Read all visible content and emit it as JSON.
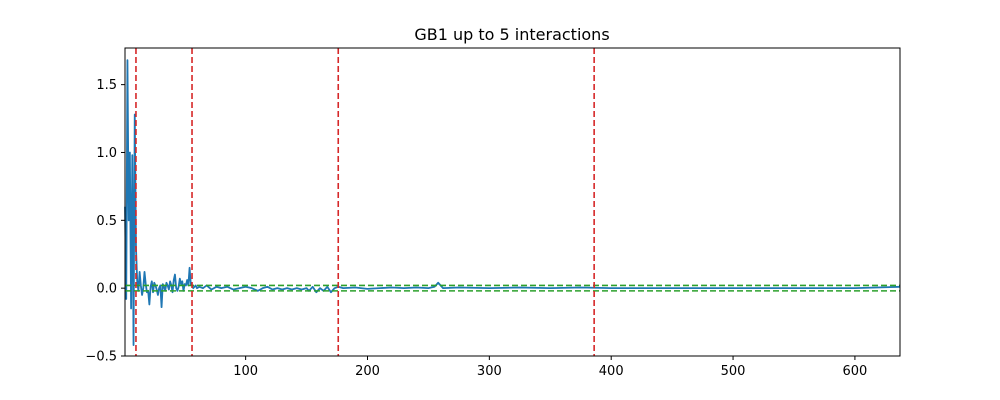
{
  "chart_data": {
    "type": "line",
    "title": "GB1 up to 5 interactions",
    "xlabel": "",
    "ylabel": "",
    "xlim": [
      1,
      637
    ],
    "ylim": [
      -0.5,
      1.77
    ],
    "xticks": [
      100,
      200,
      300,
      400,
      500,
      600
    ],
    "yticks": [
      -0.5,
      0.0,
      0.5,
      1.0,
      1.5
    ],
    "ytick_labels": [
      "−0.5",
      "0.0",
      "0.5",
      "1.0",
      "1.5"
    ],
    "grid": false,
    "legend": "none",
    "series": [
      {
        "color": "#1f77b4",
        "style": "solid",
        "points": [
          [
            1,
            0.6
          ],
          [
            2,
            -0.08
          ],
          [
            3,
            1.68
          ],
          [
            4,
            0.5
          ],
          [
            5,
            1.0
          ],
          [
            6,
            -0.15
          ],
          [
            7,
            0.98
          ],
          [
            8,
            -0.42
          ],
          [
            9,
            1.28
          ],
          [
            10,
            0.3
          ],
          [
            11,
            0.05
          ],
          [
            12,
            -0.02
          ],
          [
            13,
            0.12
          ],
          [
            14,
            0.02
          ],
          [
            15,
            -0.05
          ],
          [
            16,
            0.0
          ],
          [
            17,
            0.12
          ],
          [
            18,
            0.03
          ],
          [
            19,
            -0.03
          ],
          [
            20,
            -0.02
          ],
          [
            21,
            -0.12
          ],
          [
            22,
            0.01
          ],
          [
            23,
            0.05
          ],
          [
            24,
            -0.03
          ],
          [
            25,
            0.04
          ],
          [
            26,
            0.02
          ],
          [
            27,
            -0.01
          ],
          [
            28,
            -0.05
          ],
          [
            29,
            0.0
          ],
          [
            30,
            0.02
          ],
          [
            31,
            -0.14
          ],
          [
            32,
            0.03
          ],
          [
            33,
            0.01
          ],
          [
            34,
            -0.02
          ],
          [
            35,
            0.04
          ],
          [
            36,
            0.02
          ],
          [
            37,
            -0.01
          ],
          [
            38,
            0.05
          ],
          [
            39,
            0.02
          ],
          [
            40,
            -0.03
          ],
          [
            41,
            0.06
          ],
          [
            42,
            0.1
          ],
          [
            43,
            0.0
          ],
          [
            44,
            -0.02
          ],
          [
            45,
            0.01
          ],
          [
            46,
            0.07
          ],
          [
            47,
            0.03
          ],
          [
            48,
            0.05
          ],
          [
            49,
            -0.02
          ],
          [
            50,
            0.03
          ],
          [
            51,
            0.02
          ],
          [
            52,
            0.06
          ],
          [
            53,
            0.02
          ],
          [
            54,
            0.15
          ],
          [
            55,
            0.03
          ],
          [
            56,
            0.02
          ],
          [
            57,
            0.0
          ],
          [
            58,
            0.01
          ],
          [
            59,
            0.02
          ],
          [
            60,
            0.0
          ],
          [
            62,
            0.01
          ],
          [
            65,
            0.0
          ],
          [
            68,
            0.02
          ],
          [
            72,
            -0.01
          ],
          [
            76,
            0.01
          ],
          [
            80,
            0.0
          ],
          [
            85,
            0.01
          ],
          [
            90,
            -0.01
          ],
          [
            95,
            0.0
          ],
          [
            100,
            0.01
          ],
          [
            105,
            0.0
          ],
          [
            110,
            -0.02
          ],
          [
            114,
            0.0
          ],
          [
            118,
            0.01
          ],
          [
            122,
            -0.01
          ],
          [
            126,
            0.0
          ],
          [
            130,
            -0.01
          ],
          [
            134,
            0.0
          ],
          [
            138,
            -0.01
          ],
          [
            142,
            0.0
          ],
          [
            146,
            -0.01
          ],
          [
            150,
            0.0
          ],
          [
            152,
            -0.02
          ],
          [
            155,
            0.01
          ],
          [
            158,
            -0.03
          ],
          [
            161,
            0.0
          ],
          [
            164,
            -0.02
          ],
          [
            167,
            0.01
          ],
          [
            170,
            -0.03
          ],
          [
            173,
            0.0
          ],
          [
            176,
            0.01
          ],
          [
            180,
            0.0
          ],
          [
            190,
            0.005
          ],
          [
            200,
            -0.005
          ],
          [
            210,
            0.0
          ],
          [
            220,
            0.005
          ],
          [
            230,
            0.0
          ],
          [
            240,
            0.005
          ],
          [
            250,
            0.0
          ],
          [
            255,
            0.01
          ],
          [
            258,
            0.04
          ],
          [
            262,
            0.0
          ],
          [
            275,
            0.005
          ],
          [
            300,
            0.0
          ],
          [
            325,
            0.005
          ],
          [
            350,
            0.0
          ],
          [
            375,
            0.005
          ],
          [
            400,
            0.0
          ],
          [
            450,
            0.0
          ],
          [
            500,
            0.0
          ],
          [
            550,
            0.0
          ],
          [
            600,
            0.0
          ],
          [
            637,
            0.01
          ]
        ]
      }
    ],
    "hlines": [
      {
        "y": 0.02,
        "color": "#2ca02c",
        "style": "dashed"
      },
      {
        "y": -0.02,
        "color": "#2ca02c",
        "style": "dashed"
      }
    ],
    "vlines": [
      {
        "x": 10,
        "color": "#d62728",
        "style": "dashed"
      },
      {
        "x": 56,
        "color": "#d62728",
        "style": "dashed"
      },
      {
        "x": 176,
        "color": "#d62728",
        "style": "dashed"
      },
      {
        "x": 386,
        "color": "#d62728",
        "style": "dashed"
      }
    ]
  }
}
